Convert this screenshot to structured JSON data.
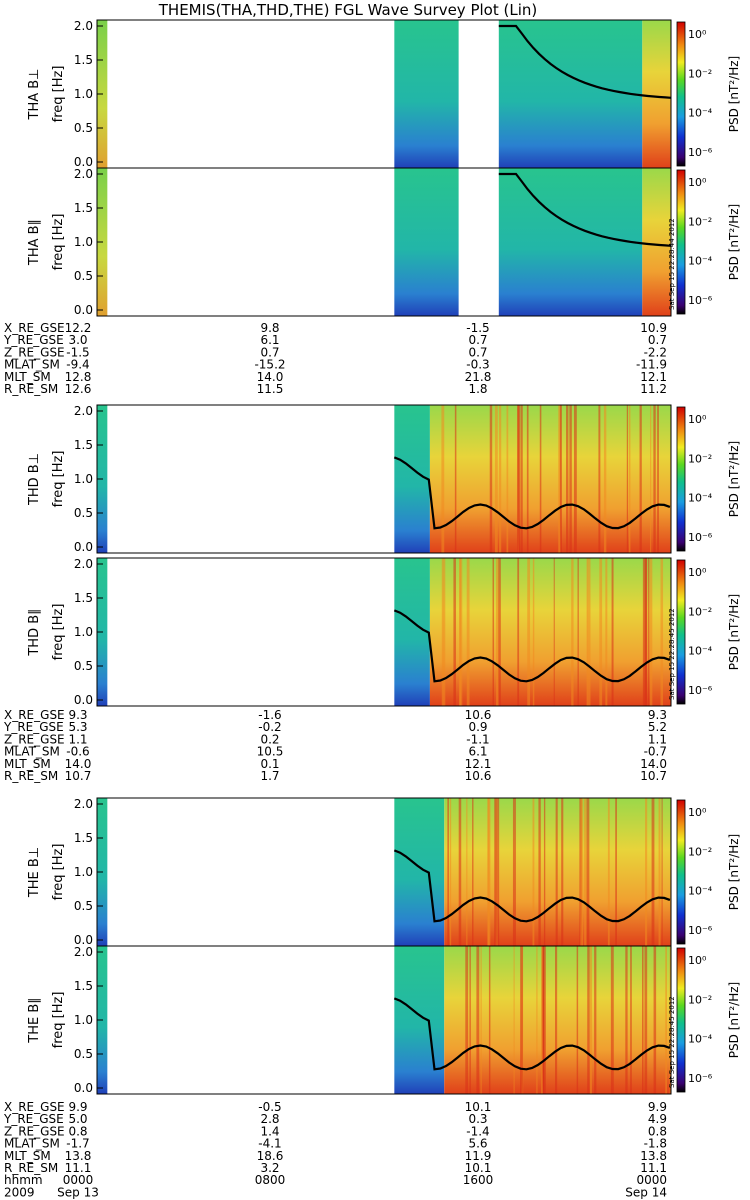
{
  "title": "THEMIS(THA,THD,THE) FGL Wave Survey Plot (Lin)",
  "colorbar": {
    "label": "PSD [nT²/Hz]",
    "ticks": [
      "10⁰",
      "10⁻²",
      "10⁻⁴",
      "10⁻⁶"
    ]
  },
  "stamps": [
    "Sat Sep 15 22:28:44 2012",
    "Sat Sep 15 22:28:45 2012",
    "Sat Sep 15 22:28:45 2012"
  ],
  "chart_data": {
    "type": "heatmap",
    "x_axis": {
      "tick_labels": [
        "0000",
        "0800",
        "1600",
        "0000"
      ],
      "row_label": "hhmm",
      "date_row_label": "2009",
      "date_labels": [
        "Sep 13",
        "Sep 14"
      ]
    },
    "y_axis": {
      "ylabel": "freq [Hz]",
      "ylim": [
        0,
        2.0
      ],
      "tick_labels": [
        "0.0",
        "0.5",
        "1.0",
        "1.5",
        "2.0"
      ]
    },
    "color_scale": {
      "type": "log",
      "range": [
        "1e-6",
        "1e0"
      ]
    },
    "panels": [
      {
        "label": "THA B⊥",
        "probe": "THA"
      },
      {
        "label": "THA B∥",
        "probe": "THA"
      },
      {
        "label": "THD B⊥",
        "probe": "THD"
      },
      {
        "label": "THD B∥",
        "probe": "THD"
      },
      {
        "label": "THE B⊥",
        "probe": "THE"
      },
      {
        "label": "THE B∥",
        "probe": "THE"
      }
    ],
    "ephemeris": [
      {
        "probe": "THA",
        "rows": [
          {
            "name": "X_RE_GSE",
            "values": [
              "12.2",
              "9.8",
              "-1.5",
              "10.9"
            ]
          },
          {
            "name": "Y_RE_GSE",
            "values": [
              "3.0",
              "6.1",
              "0.7",
              "0.7"
            ]
          },
          {
            "name": "Z_RE_GSE",
            "values": [
              "-1.5",
              "0.7",
              "0.7",
              "-2.2"
            ]
          },
          {
            "name": "MLAT_SM",
            "values": [
              "-9.4",
              "-15.2",
              "-0.3",
              "-11.9"
            ]
          },
          {
            "name": "MLT_SM",
            "values": [
              "12.8",
              "14.0",
              "21.8",
              "12.1"
            ]
          },
          {
            "name": "R_RE_SM",
            "values": [
              "12.6",
              "11.5",
              "1.8",
              "11.2"
            ]
          }
        ]
      },
      {
        "probe": "THD",
        "rows": [
          {
            "name": "X_RE_GSE",
            "values": [
              "9.3",
              "-1.6",
              "10.6",
              "9.3"
            ]
          },
          {
            "name": "Y_RE_GSE",
            "values": [
              "5.3",
              "-0.2",
              "0.9",
              "5.2"
            ]
          },
          {
            "name": "Z_RE_GSE",
            "values": [
              "1.1",
              "0.2",
              "-1.1",
              "1.1"
            ]
          },
          {
            "name": "MLAT_SM",
            "values": [
              "-0.6",
              "10.5",
              "6.1",
              "-0.7"
            ]
          },
          {
            "name": "MLT_SM",
            "values": [
              "14.0",
              "0.1",
              "12.1",
              "14.0"
            ]
          },
          {
            "name": "R_RE_SM",
            "values": [
              "10.7",
              "1.7",
              "10.6",
              "10.7"
            ]
          }
        ]
      },
      {
        "probe": "THE",
        "rows": [
          {
            "name": "X_RE_GSE",
            "values": [
              "9.9",
              "-0.5",
              "10.1",
              "9.9"
            ]
          },
          {
            "name": "Y_RE_GSE",
            "values": [
              "5.0",
              "2.8",
              "0.3",
              "4.9"
            ]
          },
          {
            "name": "Z_RE_GSE",
            "values": [
              "0.8",
              "1.4",
              "-1.4",
              "0.8"
            ]
          },
          {
            "name": "MLAT_SM",
            "values": [
              "-1.7",
              "-4.1",
              "5.6",
              "-1.8"
            ]
          },
          {
            "name": "MLT_SM",
            "values": [
              "13.8",
              "18.6",
              "11.9",
              "13.8"
            ]
          },
          {
            "name": "R_RE_SM",
            "values": [
              "11.1",
              "3.2",
              "10.1",
              "11.1"
            ]
          }
        ]
      }
    ]
  }
}
